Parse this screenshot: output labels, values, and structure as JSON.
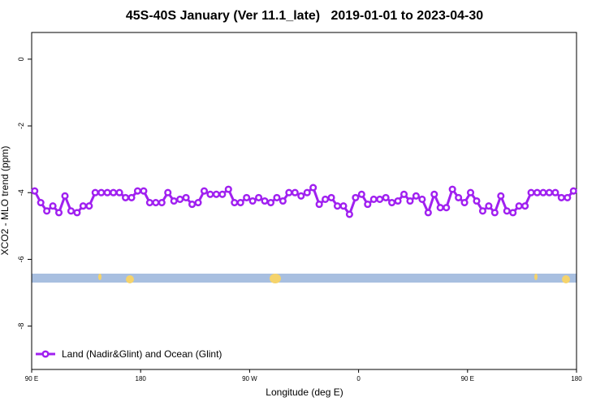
{
  "chart_data": {
    "type": "line",
    "title": "45S-40S January (Ver 11.1_late)   2019-01-01 to 2023-04-30",
    "xlabel": "Longitude (deg E)",
    "ylabel": "XCO2 - MLO trend (ppm)",
    "xlim": [
      90,
      540
    ],
    "ylim": [
      -9.3,
      0.8
    ],
    "xticks": [
      {
        "value": 90,
        "label": "90 E"
      },
      {
        "value": 180,
        "label": "180"
      },
      {
        "value": 270,
        "label": "90 W"
      },
      {
        "value": 360,
        "label": "0"
      },
      {
        "value": 450,
        "label": "90 E"
      },
      {
        "value": 540,
        "label": "180"
      }
    ],
    "yticks": [
      0,
      -2,
      -4,
      -6,
      -8
    ],
    "legend": "bottomleft",
    "x": [
      92.5,
      97.5,
      102.5,
      107.5,
      112.5,
      117.5,
      122.5,
      127.5,
      132.5,
      137.5,
      142.5,
      147.5,
      152.5,
      157.5,
      162.5,
      167.5,
      172.5,
      177.5,
      182.5,
      187.5,
      192.5,
      197.5,
      202.5,
      207.5,
      212.5,
      217.5,
      222.5,
      227.5,
      232.5,
      237.5,
      242.5,
      247.5,
      252.5,
      257.5,
      262.5,
      267.5,
      272.5,
      277.5,
      282.5,
      287.5,
      292.5,
      297.5,
      302.5,
      307.5,
      312.5,
      317.5,
      322.5,
      327.5,
      332.5,
      337.5,
      342.5,
      347.5,
      352.5,
      357.5,
      362.5,
      367.5,
      372.5,
      377.5,
      382.5,
      387.5,
      392.5,
      397.5,
      402.5,
      407.5,
      412.5,
      417.5,
      422.5,
      427.5,
      432.5,
      437.5,
      442.5,
      447.5,
      452.5,
      457.5,
      462.5,
      467.5,
      472.5,
      477.5,
      482.5,
      487.5,
      492.5,
      497.5,
      502.5,
      507.5,
      512.5,
      517.5,
      522.5,
      527.5,
      532.5,
      537.5
    ],
    "series": [
      {
        "name": "Land (Nadir&Glint) and Ocean (Glint)",
        "color": "#a020f0",
        "values": [
          -3.95,
          -4.3,
          -4.55,
          -4.4,
          -4.6,
          -4.1,
          -4.55,
          -4.6,
          -4.4,
          -4.4,
          -4.0,
          -4.0,
          -4.0,
          -4.0,
          -4.0,
          -4.15,
          -4.15,
          -3.95,
          -3.95,
          -4.3,
          -4.3,
          -4.3,
          -4.0,
          -4.25,
          -4.2,
          -4.15,
          -4.35,
          -4.3,
          -3.95,
          -4.05,
          -4.05,
          -4.05,
          -3.9,
          -4.3,
          -4.3,
          -4.15,
          -4.25,
          -4.15,
          -4.25,
          -4.3,
          -4.15,
          -4.25,
          -4.0,
          -4.0,
          -4.1,
          -4.0,
          -3.85,
          -4.35,
          -4.2,
          -4.15,
          -4.4,
          -4.4,
          -4.65,
          -4.15,
          -4.05,
          -4.35,
          -4.2,
          -4.2,
          -4.15,
          -4.3,
          -4.25,
          -4.05,
          -4.25,
          -4.1,
          -4.2,
          -4.6,
          -4.05,
          -4.45,
          -4.45,
          -3.9,
          -4.15,
          -4.3,
          -4.0,
          -4.25,
          -4.55,
          -4.4,
          -4.6,
          -4.1,
          -4.55,
          -4.6,
          -4.4,
          -4.4,
          -4.0,
          -4.0,
          -4.0,
          -4.0,
          -4.0,
          -4.15,
          -4.15,
          -3.95
        ]
      }
    ]
  }
}
